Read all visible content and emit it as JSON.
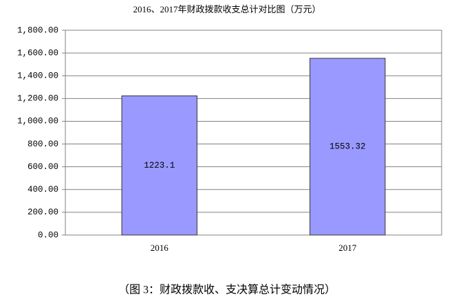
{
  "chart_data": {
    "type": "bar",
    "title": "2016、2017年财政拨款收支总计对比图（万元）",
    "caption": "（图 3：财政拨款收、支决算总计变动情况）",
    "categories": [
      "2016",
      "2017"
    ],
    "values": [
      1223.1,
      1553.32
    ],
    "color": "#9999ff",
    "ylim": [
      0,
      1800
    ],
    "yticks": [
      {
        "value": 0,
        "label": "0.00"
      },
      {
        "value": 200,
        "label": "200.00"
      },
      {
        "value": 400,
        "label": "400.00"
      },
      {
        "value": 600,
        "label": "600.00"
      },
      {
        "value": 800,
        "label": "800.00"
      },
      {
        "value": 1000,
        "label": "1,000.00"
      },
      {
        "value": 1200,
        "label": "1,200.00"
      },
      {
        "value": 1400,
        "label": "1,400.00"
      },
      {
        "value": 1600,
        "label": "1,600.00"
      },
      {
        "value": 1800,
        "label": "1,800.00"
      }
    ],
    "grid": true
  }
}
